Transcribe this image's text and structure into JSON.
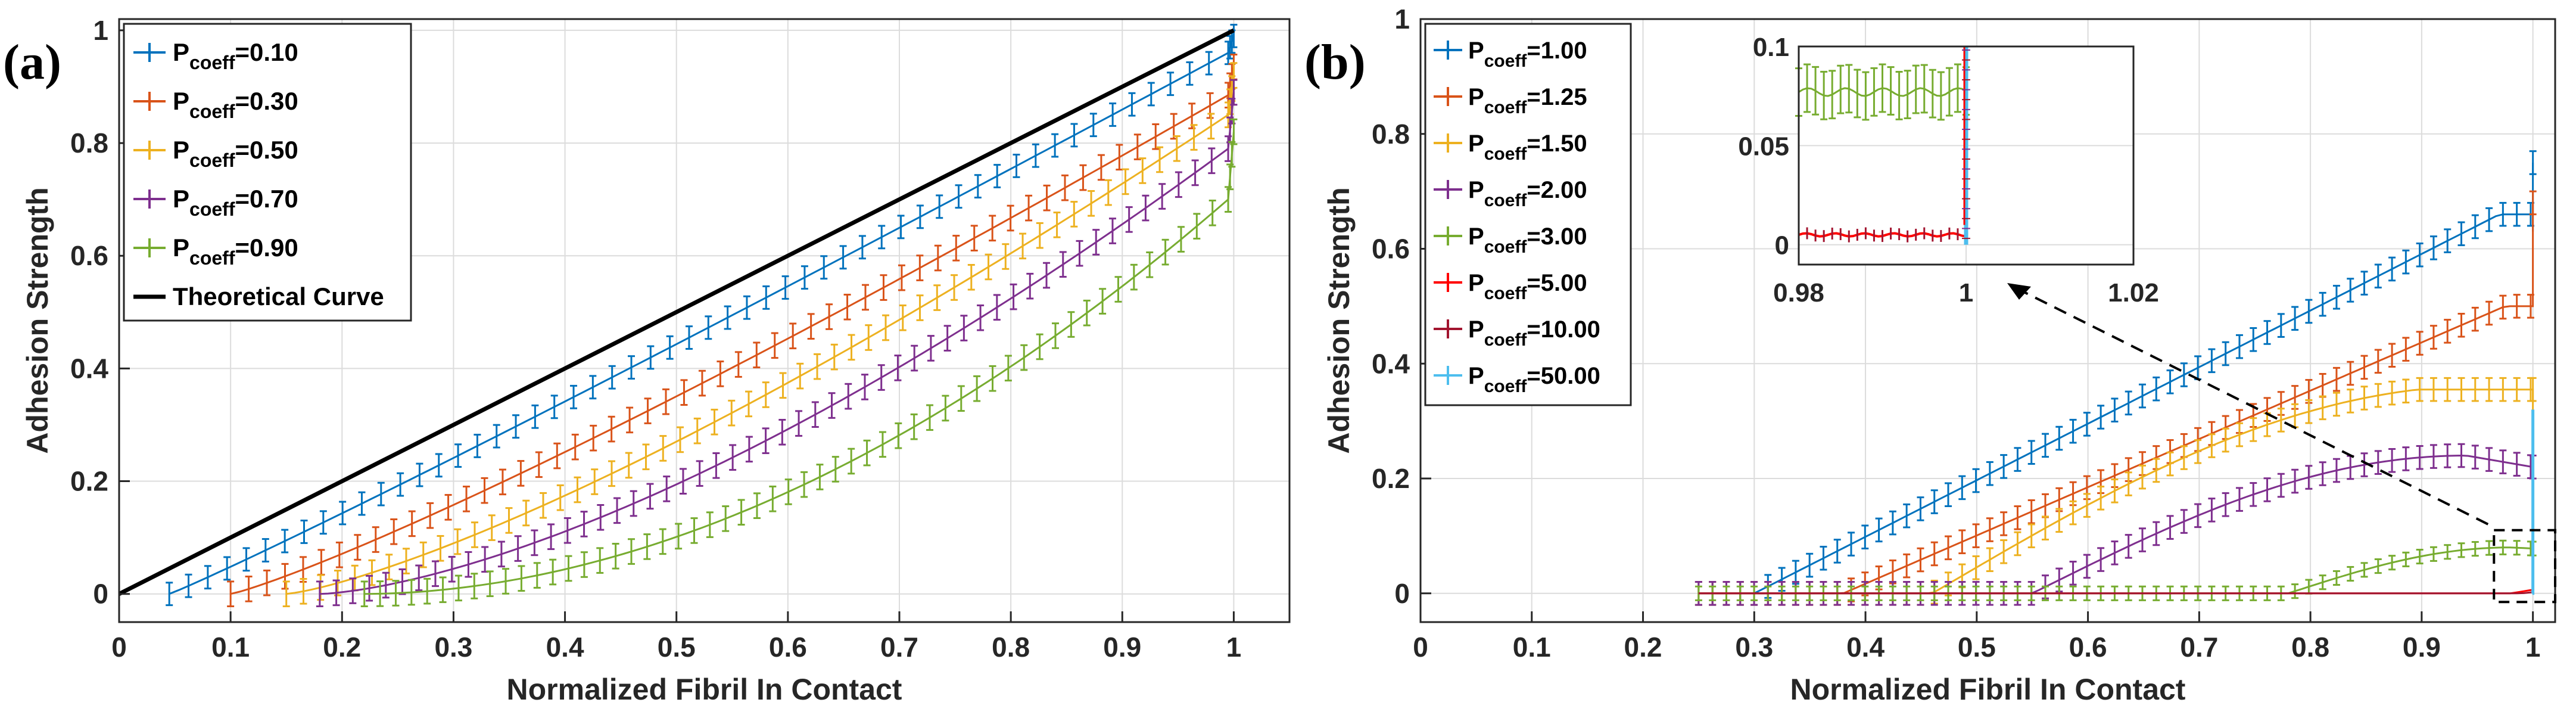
{
  "figure": {
    "panels": [
      "(a)",
      "(b)"
    ]
  },
  "colors": {
    "blue": "#0072BD",
    "orange": "#D95319",
    "yellow": "#EDB120",
    "purple": "#7E2F8E",
    "green": "#77AC30",
    "red": "#FF0000",
    "crimson": "#A2142F",
    "cyan": "#4DBEEE",
    "black": "#000000"
  },
  "chart_data": [
    {
      "id": "a",
      "panel_label": "(a)",
      "type": "line",
      "xlabel": "Normalized Fibril In Contact",
      "ylabel": "Adhesion Strength",
      "xlim": [
        0,
        1.05
      ],
      "ylim": [
        -0.05,
        1.02
      ],
      "xticks": [
        0,
        0.1,
        0.2,
        0.3,
        0.4,
        0.5,
        0.6,
        0.7,
        0.8,
        0.9,
        1
      ],
      "xtick_labels": [
        "0",
        "0.1",
        "0.2",
        "0.3",
        "0.4",
        "0.5",
        "0.6",
        "0.7",
        "0.8",
        "0.9",
        "1"
      ],
      "yticks": [
        0,
        0.2,
        0.4,
        0.6,
        0.8,
        1
      ],
      "ytick_labels": [
        "0",
        "0.2",
        "0.4",
        "0.6",
        "0.8",
        "1"
      ],
      "grid": true,
      "legend": "top-left",
      "series": [
        {
          "name": "P",
          "sub": "coeff",
          "value": "=0.10",
          "color": "#0072BD",
          "x0": 0.045,
          "xend": 0.995,
          "yend": 0.96,
          "shape": 1.05,
          "tail": 0.03,
          "err": 0.02,
          "errbars": true
        },
        {
          "name": "P",
          "sub": "coeff",
          "value": "=0.30",
          "color": "#D95319",
          "x0": 0.1,
          "xend": 0.995,
          "yend": 0.885,
          "shape": 1.15,
          "tail": 0.05,
          "err": 0.022,
          "errbars": true
        },
        {
          "name": "P",
          "sub": "coeff",
          "value": "=0.50",
          "color": "#EDB120",
          "x0": 0.15,
          "xend": 0.995,
          "yend": 0.85,
          "shape": 1.3,
          "tail": 0.07,
          "err": 0.022,
          "errbars": true
        },
        {
          "name": "P",
          "sub": "coeff",
          "value": "=0.70",
          "color": "#7E2F8E",
          "x0": 0.18,
          "xend": 0.995,
          "yend": 0.79,
          "shape": 1.5,
          "tail": 0.1,
          "err": 0.022,
          "errbars": true
        },
        {
          "name": "P",
          "sub": "coeff",
          "value": "=0.90",
          "color": "#77AC30",
          "x0": 0.22,
          "xend": 0.995,
          "yend": 0.7,
          "shape": 1.9,
          "tail": 0.12,
          "err": 0.022,
          "errbars": true
        },
        {
          "name": "Theoretical Curve",
          "sub": "",
          "value": "",
          "color": "#000000",
          "x": [
            0,
            1
          ],
          "y": [
            0,
            1
          ],
          "errbars": false
        }
      ]
    },
    {
      "id": "b",
      "panel_label": "(b)",
      "type": "line",
      "xlabel": "Normalized Fibril In Contact",
      "ylabel": "Adhesion Strength",
      "xlim": [
        0,
        1.02
      ],
      "ylim": [
        -0.05,
        1.0
      ],
      "xticks": [
        0,
        0.1,
        0.2,
        0.3,
        0.4,
        0.5,
        0.6,
        0.7,
        0.8,
        0.9,
        1
      ],
      "xtick_labels": [
        "0",
        "0.1",
        "0.2",
        "0.3",
        "0.4",
        "0.5",
        "0.6",
        "0.7",
        "0.8",
        "0.9",
        "1"
      ],
      "yticks": [
        0,
        0.2,
        0.4,
        0.6,
        0.8,
        1
      ],
      "ytick_labels": [
        "0",
        "0.2",
        "0.4",
        "0.6",
        "0.8",
        "1"
      ],
      "grid": true,
      "legend": "top-left",
      "series": [
        {
          "name": "P",
          "sub": "coeff",
          "value": "=1.00",
          "color": "#0072BD",
          "xstart": 0.25,
          "rise": 0.3,
          "peak": 0.97,
          "peakY": 0.66,
          "endY": 0.75,
          "mode": "rise",
          "err": 0.02,
          "errbars": true
        },
        {
          "name": "P",
          "sub": "coeff",
          "value": "=1.25",
          "color": "#D95319",
          "xstart": 0.25,
          "rise": 0.38,
          "peak": 0.975,
          "peakY": 0.5,
          "endY": 0.68,
          "mode": "rise",
          "err": 0.02,
          "errbars": true
        },
        {
          "name": "P",
          "sub": "coeff",
          "value": "=1.50",
          "color": "#EDB120",
          "xstart": 0.25,
          "rise": 0.46,
          "peak": 0.96,
          "peakY": 0.355,
          "endY": 0.355,
          "mode": "plateau",
          "err": 0.02,
          "errbars": true
        },
        {
          "name": "P",
          "sub": "coeff",
          "value": "=2.00",
          "color": "#7E2F8E",
          "xstart": 0.25,
          "rise": 0.55,
          "peak": 0.94,
          "peakY": 0.24,
          "endY": 0.22,
          "mode": "hump",
          "err": 0.02,
          "errbars": true
        },
        {
          "name": "P",
          "sub": "coeff",
          "value": "=3.00",
          "color": "#77AC30",
          "xstart": 0.25,
          "rise": 0.78,
          "peak": 0.98,
          "peakY": 0.08,
          "endY": 0.078,
          "mode": "hump",
          "err": 0.012,
          "errbars": true
        },
        {
          "name": "P",
          "sub": "coeff",
          "value": "=5.00",
          "color": "#FF0000",
          "xstart": 0.25,
          "rise": 0.98,
          "peak": 0.999,
          "peakY": 0.006,
          "endY": 0.02,
          "mode": "flat",
          "err": 0.004,
          "errbars": false
        },
        {
          "name": "P",
          "sub": "coeff",
          "value": "=10.00",
          "color": "#A2142F",
          "xstart": 0.25,
          "rise": 0.99,
          "peak": 0.999,
          "peakY": 0.002,
          "endY": 0.01,
          "mode": "flat",
          "err": 0.002,
          "errbars": false
        },
        {
          "name": "P",
          "sub": "coeff",
          "value": "=50.00",
          "color": "#4DBEEE",
          "xstart": 0.999,
          "rise": 0.999,
          "peak": 1.0,
          "peakY": 0.0,
          "endY": 0.32,
          "mode": "vertical",
          "err": 0.01,
          "errbars": false
        }
      ],
      "inset": {
        "xlim": [
          0.98,
          1.02
        ],
        "ylim": [
          -0.01,
          0.1
        ],
        "xticks": [
          0.98,
          1,
          1.02
        ],
        "xtick_labels": [
          "0.98",
          "1",
          "1.02"
        ],
        "yticks": [
          0,
          0.05,
          0.1
        ],
        "ytick_labels": [
          "0",
          "0.05",
          "0.1"
        ],
        "green_level": 0.077,
        "red_level": 0.005
      }
    }
  ]
}
